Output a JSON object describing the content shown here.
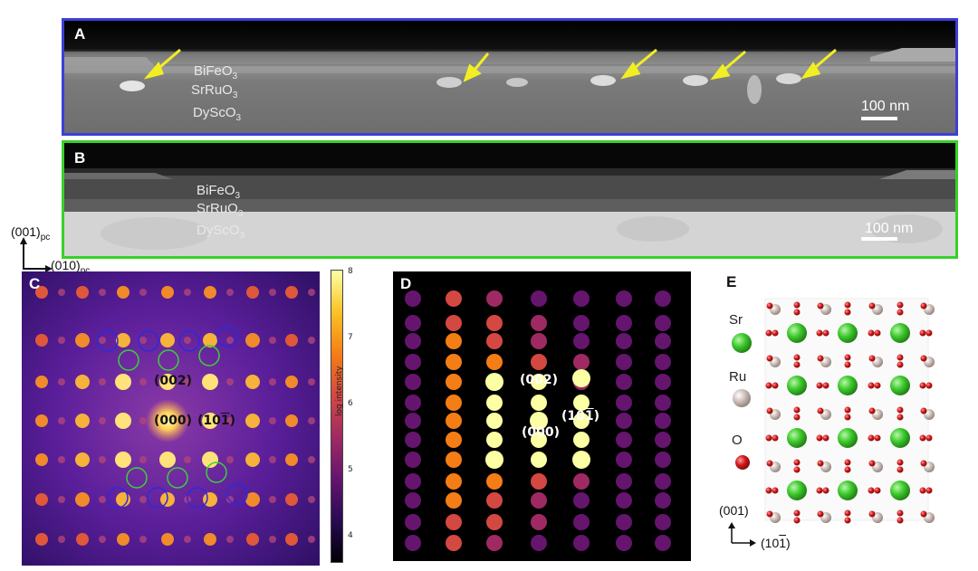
{
  "panels": {
    "a": {
      "tag": "A",
      "layers": [
        "BiFeO",
        "SrRuO",
        "DyScO"
      ],
      "scale_bar": "100 nm",
      "border_color": "#3b3fd6"
    },
    "b": {
      "tag": "B",
      "layers": [
        "BiFeO",
        "SrRuO",
        "DyScO"
      ],
      "scale_bar": "100 nm",
      "border_color": "#38d12a"
    },
    "c": {
      "tag": "C",
      "spot_labels": {
        "s002": "(002)",
        "s000": "(000)",
        "s101_main": "(10",
        "s101_bar": "1",
        "s101_end": ")"
      },
      "colorbar": {
        "label": "log intensity",
        "ticks": [
          "8",
          "7",
          "6",
          "5",
          "4"
        ],
        "min": 3.6,
        "max": 8.0
      }
    },
    "d": {
      "tag": "D",
      "spot_labels": {
        "s002": "(002)",
        "s000": "(000)",
        "s101_main": "(10",
        "s101_bar": "1",
        "s101_end": ")"
      }
    },
    "e": {
      "tag": "E",
      "legend": [
        "Sr",
        "Ru",
        "O"
      ],
      "axis_001": "(001)",
      "axis_101": "(10",
      "axis_101_bar": "1",
      "axis_101_end": ")"
    }
  },
  "orientation": {
    "y_main": "(001)",
    "y_sub": "pc",
    "x_main": "(010)",
    "x_sub": "pc"
  },
  "subscript": "3",
  "colors": {
    "sr_green": "#3cc82c",
    "ru_gray": "#cdbfb8",
    "o_red": "#d01818",
    "arrow_yellow": "#f2ee24"
  }
}
